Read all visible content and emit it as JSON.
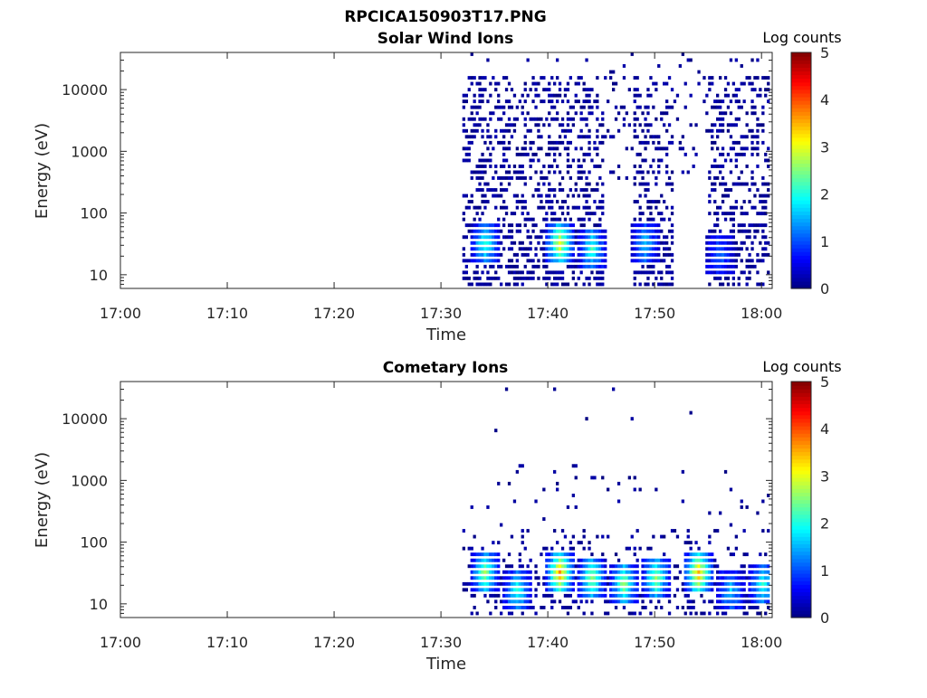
{
  "figure_title": "RPCICA150903T17.PNG",
  "chart_data": [
    {
      "type": "heatmap",
      "title": "Solar Wind Ions",
      "xlabel": "Time",
      "ylabel": "Energy (eV)",
      "x_ticks": [
        "17:00",
        "17:10",
        "17:20",
        "17:30",
        "17:40",
        "17:50",
        "18:00"
      ],
      "xlim": [
        "17:00",
        "18:01"
      ],
      "y_scale": "log",
      "y_ticks": [
        "10",
        "100",
        "1000",
        "10000"
      ],
      "ylim": [
        6,
        40000
      ],
      "colorbar": {
        "label": "Log counts",
        "range": [
          0,
          5
        ],
        "ticks": [
          "0",
          "1",
          "2",
          "3",
          "4",
          "5"
        ],
        "colormap": "jet"
      },
      "background": "#ffffff",
      "data_start": "17:32",
      "clusters": [
        {
          "time": "17:34",
          "energy_eV": 30,
          "log_counts": 2.0
        },
        {
          "time": "17:41",
          "energy_eV": 30,
          "log_counts": 3.0
        },
        {
          "time": "17:44",
          "energy_eV": 25,
          "log_counts": 2.0
        },
        {
          "time": "17:49",
          "energy_eV": 30,
          "log_counts": 1.5
        },
        {
          "time": "17:56",
          "energy_eV": 20,
          "log_counts": 1.0
        }
      ]
    },
    {
      "type": "heatmap",
      "title": "Cometary Ions",
      "xlabel": "Time",
      "ylabel": "Energy (eV)",
      "x_ticks": [
        "17:00",
        "17:10",
        "17:20",
        "17:30",
        "17:40",
        "17:50",
        "18:00"
      ],
      "xlim": [
        "17:00",
        "18:01"
      ],
      "y_scale": "log",
      "y_ticks": [
        "10",
        "100",
        "1000",
        "10000"
      ],
      "ylim": [
        6,
        40000
      ],
      "colorbar": {
        "label": "Log counts",
        "range": [
          0,
          5
        ],
        "ticks": [
          "0",
          "1",
          "2",
          "3",
          "4",
          "5"
        ],
        "colormap": "jet"
      },
      "background": "#ffffff",
      "data_start": "17:32",
      "clusters": [
        {
          "time": "17:34",
          "energy_eV": 30,
          "log_counts": 2.5
        },
        {
          "time": "17:37",
          "energy_eV": 15,
          "log_counts": 2.0
        },
        {
          "time": "17:41",
          "energy_eV": 30,
          "log_counts": 3.5
        },
        {
          "time": "17:44",
          "energy_eV": 25,
          "log_counts": 2.5
        },
        {
          "time": "17:47",
          "energy_eV": 20,
          "log_counts": 2.5
        },
        {
          "time": "17:50",
          "energy_eV": 25,
          "log_counts": 2.5
        },
        {
          "time": "17:54",
          "energy_eV": 30,
          "log_counts": 3.5
        },
        {
          "time": "17:57",
          "energy_eV": 15,
          "log_counts": 1.5
        },
        {
          "time": "18:00",
          "energy_eV": 20,
          "log_counts": 2.0
        }
      ]
    }
  ]
}
